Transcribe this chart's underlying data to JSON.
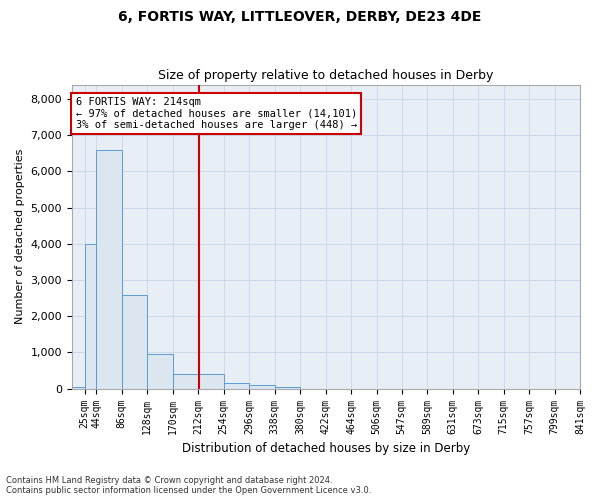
{
  "title1": "6, FORTIS WAY, LITTLEOVER, DERBY, DE23 4DE",
  "title2": "Size of property relative to detached houses in Derby",
  "xlabel": "Distribution of detached houses by size in Derby",
  "ylabel": "Number of detached properties",
  "footer1": "Contains HM Land Registry data © Crown copyright and database right 2024.",
  "footer2": "Contains public sector information licensed under the Open Government Licence v3.0.",
  "annotation_line1": "6 FORTIS WAY: 214sqm",
  "annotation_line2": "← 97% of detached houses are smaller (14,101)",
  "annotation_line3": "3% of semi-detached houses are larger (448) →",
  "property_size_sqm": 214,
  "bar_edge_color": "#5b9bd5",
  "bar_face_color": "#dce6f1",
  "grid_color": "#c8d4e8",
  "annotation_box_edge": "#cc0000",
  "vline_color": "#cc0000",
  "background_color": "#e8eef6",
  "categories": [
    "25sqm",
    "44sqm",
    "86sqm",
    "128sqm",
    "170sqm",
    "212sqm",
    "254sqm",
    "296sqm",
    "338sqm",
    "380sqm",
    "422sqm",
    "464sqm",
    "506sqm",
    "547sqm",
    "589sqm",
    "631sqm",
    "673sqm",
    "715sqm",
    "757sqm",
    "799sqm",
    "841sqm"
  ],
  "bin_edges_sqm": [
    4,
    25,
    44,
    86,
    128,
    170,
    212,
    254,
    296,
    338,
    380,
    422,
    464,
    506,
    547,
    589,
    631,
    673,
    715,
    757,
    799,
    841
  ],
  "values": [
    50,
    4000,
    6600,
    2600,
    950,
    400,
    400,
    150,
    100,
    50,
    0,
    0,
    0,
    0,
    0,
    0,
    0,
    0,
    0,
    0,
    0
  ],
  "ylim": [
    0,
    8400
  ],
  "yticks": [
    0,
    1000,
    2000,
    3000,
    4000,
    5000,
    6000,
    7000,
    8000
  ]
}
